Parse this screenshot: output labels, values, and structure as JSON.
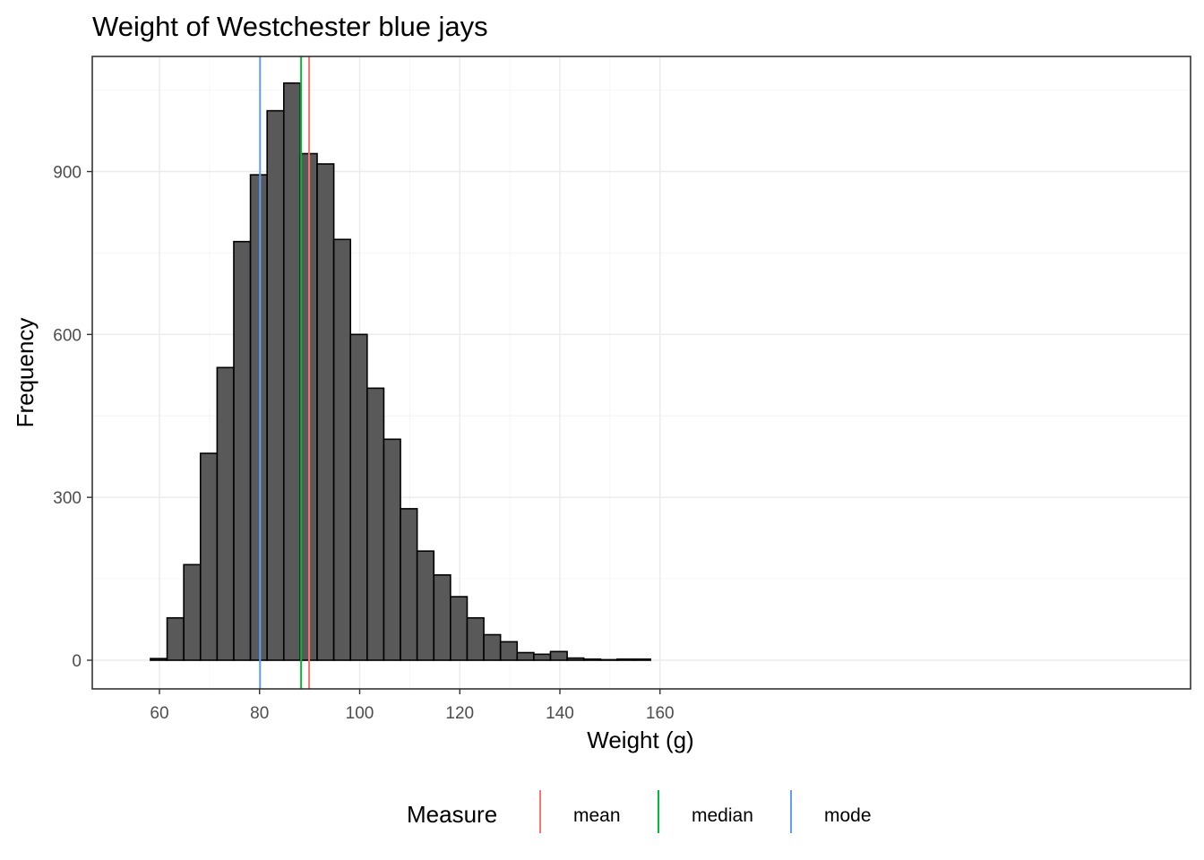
{
  "chart_data": {
    "type": "bar",
    "title": "Weight of Westchester blue jays",
    "xlabel": "Weight (g)",
    "ylabel": "Frequency",
    "xlim": [
      58.2,
      158
    ],
    "ylim": [
      0,
      1063
    ],
    "x_ticks": [
      60,
      80,
      100,
      120,
      140,
      160
    ],
    "y_ticks": [
      0,
      300,
      600,
      900
    ],
    "bin_width": 3.33,
    "bins": [
      {
        "x0": 58.2,
        "x1": 61.53,
        "count": 3
      },
      {
        "x0": 61.53,
        "x1": 64.86,
        "count": 78
      },
      {
        "x0": 64.86,
        "x1": 68.19,
        "count": 176
      },
      {
        "x0": 68.19,
        "x1": 71.52,
        "count": 381
      },
      {
        "x0": 71.52,
        "x1": 74.85,
        "count": 539
      },
      {
        "x0": 74.85,
        "x1": 78.18,
        "count": 771
      },
      {
        "x0": 78.18,
        "x1": 81.51,
        "count": 894
      },
      {
        "x0": 81.51,
        "x1": 84.84,
        "count": 1012
      },
      {
        "x0": 84.84,
        "x1": 88.17,
        "count": 1063
      },
      {
        "x0": 88.17,
        "x1": 91.5,
        "count": 933
      },
      {
        "x0": 91.5,
        "x1": 94.83,
        "count": 914
      },
      {
        "x0": 94.83,
        "x1": 98.16,
        "count": 775
      },
      {
        "x0": 98.16,
        "x1": 101.49,
        "count": 600
      },
      {
        "x0": 101.49,
        "x1": 104.82,
        "count": 501
      },
      {
        "x0": 104.82,
        "x1": 108.15,
        "count": 407
      },
      {
        "x0": 108.15,
        "x1": 111.48,
        "count": 279
      },
      {
        "x0": 111.48,
        "x1": 114.81,
        "count": 201
      },
      {
        "x0": 114.81,
        "x1": 118.14,
        "count": 157
      },
      {
        "x0": 118.14,
        "x1": 121.47,
        "count": 117
      },
      {
        "x0": 121.47,
        "x1": 124.8,
        "count": 78
      },
      {
        "x0": 124.8,
        "x1": 128.13,
        "count": 47
      },
      {
        "x0": 128.13,
        "x1": 131.46,
        "count": 34
      },
      {
        "x0": 131.46,
        "x1": 134.79,
        "count": 14
      },
      {
        "x0": 134.79,
        "x1": 138.12,
        "count": 11
      },
      {
        "x0": 138.12,
        "x1": 141.45,
        "count": 16
      },
      {
        "x0": 141.45,
        "x1": 144.78,
        "count": 4
      },
      {
        "x0": 144.78,
        "x1": 148.11,
        "count": 2
      },
      {
        "x0": 148.11,
        "x1": 151.44,
        "count": 1
      },
      {
        "x0": 151.44,
        "x1": 154.77,
        "count": 2
      },
      {
        "x0": 154.77,
        "x1": 158.1,
        "count": 2
      }
    ],
    "vlines": [
      {
        "name": "mean",
        "x": 89.9,
        "color": "#f8766d"
      },
      {
        "name": "median",
        "x": 88.3,
        "color": "#00ba38"
      },
      {
        "name": "mode",
        "x": 80.1,
        "color": "#619cff"
      }
    ],
    "legend": {
      "title": "Measure",
      "position": "bottom",
      "entries": [
        {
          "name": "mean",
          "color": "#f8766d"
        },
        {
          "name": "median",
          "color": "#00ba38"
        },
        {
          "name": "mode",
          "color": "#619cff"
        }
      ]
    },
    "grid": true,
    "bar_fill": "#595959",
    "bar_stroke": "#000000"
  }
}
